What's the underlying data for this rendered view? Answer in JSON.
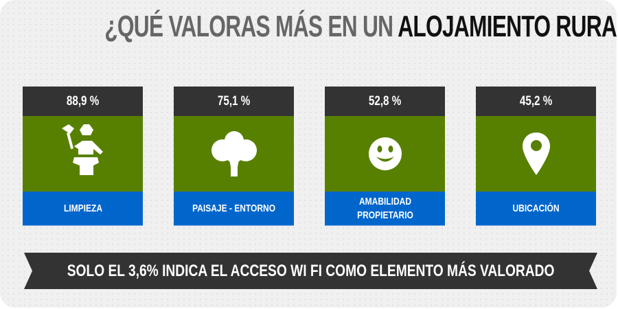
{
  "title": {
    "prefix": "¿QUÉ VALORAS MÁS EN UN ",
    "highlight": "ALOJAMIENTO RURAL",
    "suffix": "?"
  },
  "colors": {
    "header": "#333333",
    "icon_bg": "#588000",
    "label_bg": "#0066cc",
    "background": "#f0f0f0"
  },
  "cards": [
    {
      "value": "88,9 %",
      "icon": "cleaning-maid-icon",
      "label": "LIMPIEZA"
    },
    {
      "value": "75,1 %",
      "icon": "tree-icon",
      "label": "PAISAJE - ENTORNO"
    },
    {
      "value": "52,8 %",
      "icon": "smiley-face-icon",
      "label": "AMABILIDAD PROPIETARIO"
    },
    {
      "value": "45,2 %",
      "icon": "map-pin-icon",
      "label": "UBICACIÓN"
    }
  ],
  "banner": "SOLO EL 3,6% INDICA EL ACCESO WI FI COMO ELEMENTO MÁS VALORADO"
}
